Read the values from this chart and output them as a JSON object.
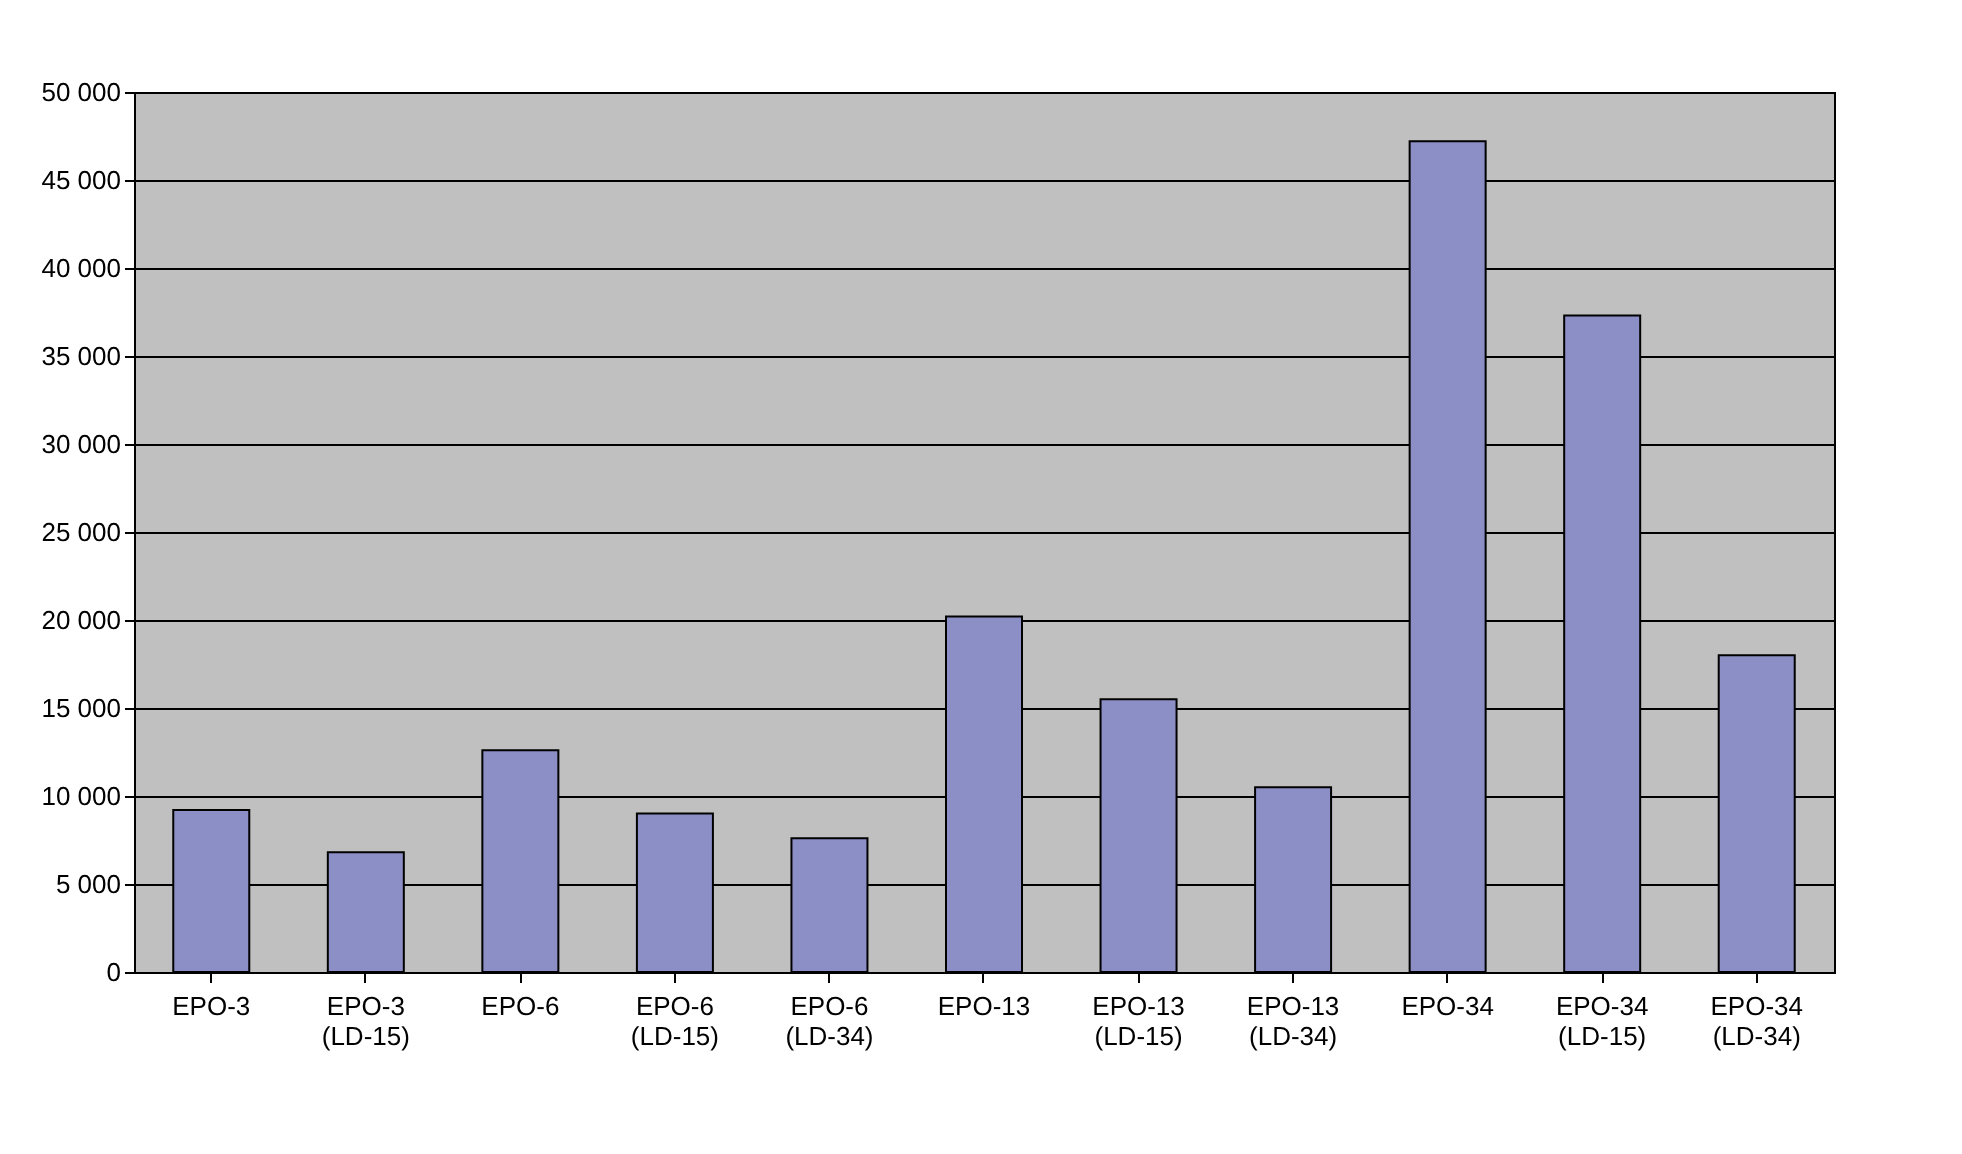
{
  "chart_data": {
    "type": "bar",
    "categories": [
      "EPO-3",
      "EPO-3 (LD-15)",
      "EPO-6",
      "EPO-6 (LD-15)",
      "EPO-6 (LD-34)",
      "EPO-13",
      "EPO-13 (LD-15)",
      "EPO-13 (LD-34)",
      "EPO-34",
      "EPO-34 (LD-15)",
      "EPO-34 (LD-34)"
    ],
    "values": [
      9200,
      6800,
      12600,
      9000,
      7600,
      20200,
      15500,
      10500,
      47200,
      37300,
      18000
    ],
    "color": "#8c8fc6",
    "ylim": [
      0,
      50000
    ],
    "yticks": [
      0,
      5000,
      10000,
      15000,
      20000,
      25000,
      30000,
      35000,
      40000,
      45000,
      50000
    ],
    "grid": "y"
  }
}
